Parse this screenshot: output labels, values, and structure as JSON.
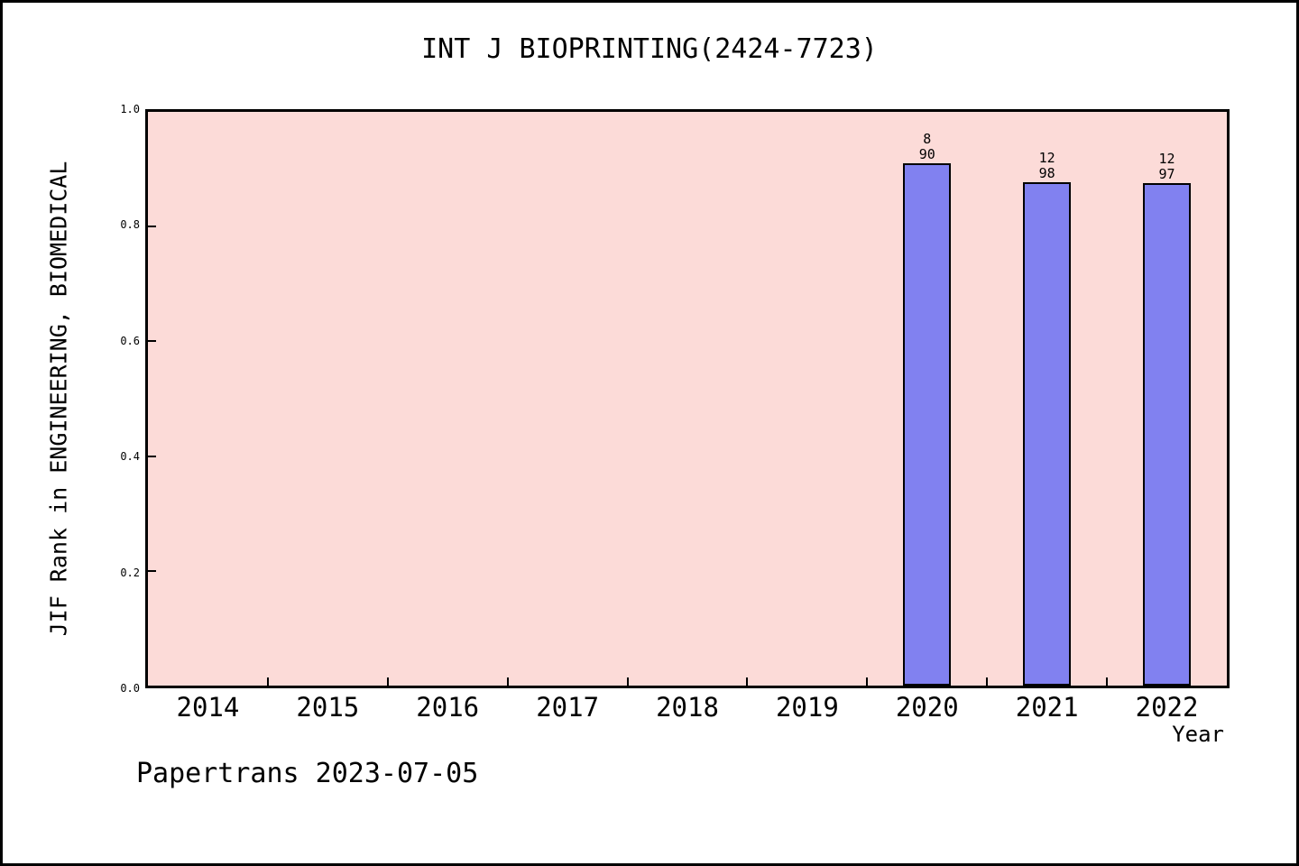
{
  "title": "INT J BIOPRINTING(2424-7723)",
  "footer": "Papertrans 2023-07-05",
  "chart_data": {
    "type": "bar",
    "title": "INT J BIOPRINTING(2424-7723)",
    "xlabel": "Year",
    "ylabel": "JIF Rank in ENGINEERING, BIOMEDICAL",
    "categories": [
      "2014",
      "2015",
      "2016",
      "2017",
      "2018",
      "2019",
      "2020",
      "2021",
      "2022"
    ],
    "values": [
      null,
      null,
      null,
      null,
      null,
      null,
      0.911,
      0.878,
      0.876
    ],
    "bar_labels": [
      null,
      null,
      null,
      null,
      null,
      null,
      {
        "numerator": "8",
        "denominator": "90"
      },
      {
        "numerator": "12",
        "denominator": "98"
      },
      {
        "numerator": "12",
        "denominator": "97"
      }
    ],
    "ylim": [
      0.0,
      1.0
    ],
    "yticks": [
      0.0,
      0.2,
      0.4,
      0.6,
      0.8,
      1.0
    ],
    "ytick_labels": [
      "0.0",
      "0.2",
      "0.4",
      "0.6",
      "0.8",
      "1.0"
    ],
    "grid": false,
    "legend": "none",
    "colors": {
      "plot_background": "#fcdbd8",
      "bar_fill": "#8181f0",
      "bar_edge": "#000000",
      "axis": "#000000",
      "text": "#000000"
    }
  }
}
